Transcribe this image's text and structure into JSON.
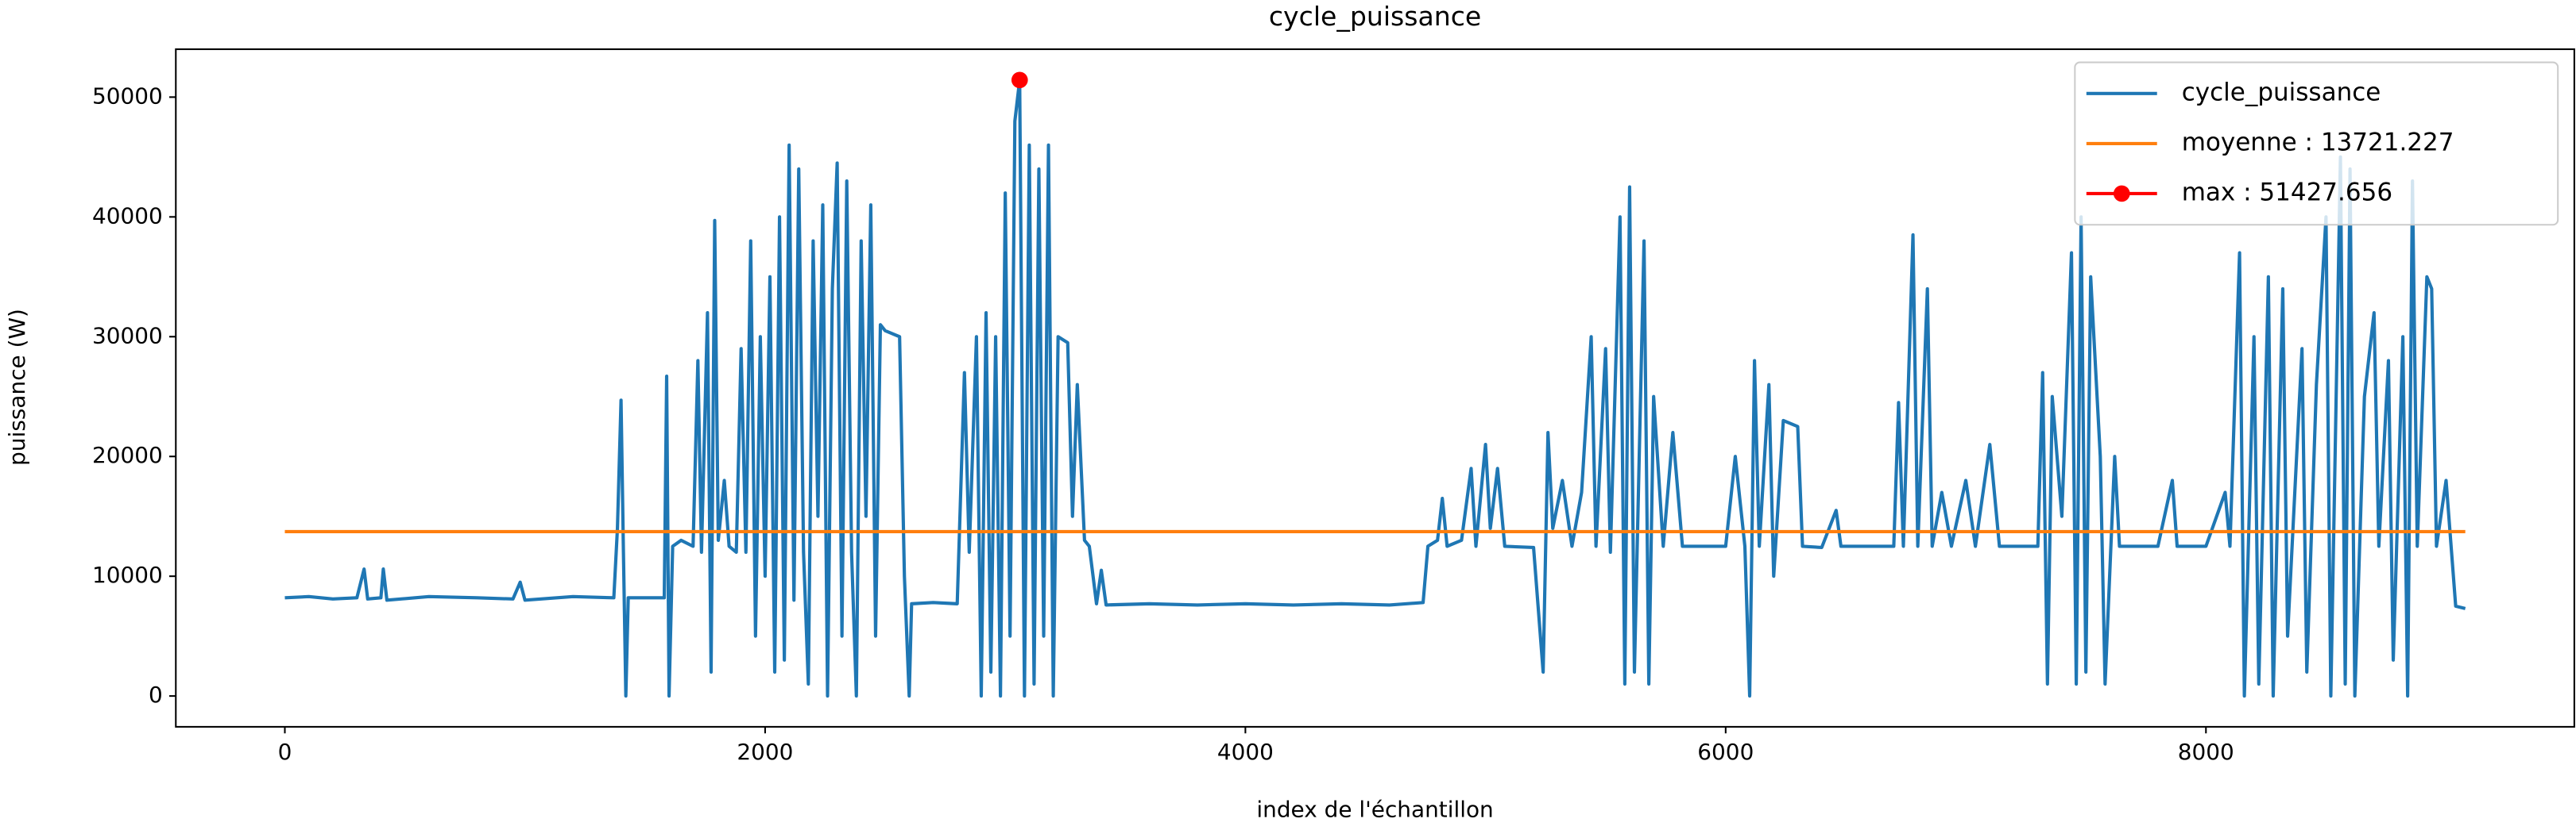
{
  "chart_data": {
    "type": "line",
    "title": "cycle_puissance",
    "x_label": "index de l'échantillon",
    "y_label": "puissance (W)",
    "xlim": [
      -454,
      9534
    ],
    "ylim": [
      -2571.4,
      53999.0
    ],
    "xticks": [
      0,
      2000,
      4000,
      6000,
      8000
    ],
    "yticks": [
      0,
      10000,
      20000,
      30000,
      40000,
      50000
    ],
    "grid": false,
    "legend": "upper right",
    "series": [
      {
        "name": "cycle_puissance",
        "color": "#1f77b4",
        "x": [
          0,
          100,
          200,
          300,
          330,
          345,
          400,
          410,
          425,
          600,
          800,
          950,
          980,
          1000,
          1200,
          1370,
          1385,
          1400,
          1410,
          1420,
          1430,
          1580,
          1590,
          1600,
          1615,
          1650,
          1700,
          1720,
          1735,
          1760,
          1775,
          1790,
          1805,
          1830,
          1850,
          1880,
          1900,
          1920,
          1940,
          1960,
          1980,
          2000,
          2020,
          2040,
          2060,
          2080,
          2100,
          2120,
          2140,
          2160,
          2180,
          2200,
          2220,
          2240,
          2260,
          2280,
          2300,
          2320,
          2340,
          2360,
          2380,
          2400,
          2420,
          2440,
          2460,
          2480,
          2500,
          2560,
          2580,
          2600,
          2610,
          2700,
          2800,
          2830,
          2850,
          2880,
          2900,
          2920,
          2940,
          2960,
          2980,
          3000,
          3020,
          3040,
          3060,
          3080,
          3100,
          3120,
          3140,
          3160,
          3180,
          3200,
          3220,
          3260,
          3280,
          3300,
          3330,
          3350,
          3380,
          3400,
          3420,
          3600,
          3800,
          4000,
          4200,
          4400,
          4600,
          4740,
          4760,
          4800,
          4820,
          4840,
          4900,
          4940,
          4960,
          5000,
          5020,
          5050,
          5080,
          5200,
          5240,
          5260,
          5280,
          5320,
          5360,
          5400,
          5440,
          5460,
          5500,
          5520,
          5560,
          5580,
          5600,
          5620,
          5660,
          5680,
          5700,
          5740,
          5780,
          5820,
          6000,
          6040,
          6080,
          6100,
          6120,
          6140,
          6180,
          6200,
          6240,
          6300,
          6320,
          6400,
          6460,
          6480,
          6700,
          6720,
          6740,
          6780,
          6800,
          6840,
          6860,
          6900,
          6940,
          7000,
          7040,
          7100,
          7140,
          7300,
          7320,
          7340,
          7360,
          7400,
          7440,
          7460,
          7480,
          7500,
          7520,
          7560,
          7580,
          7620,
          7640,
          7800,
          7860,
          7880,
          8000,
          8080,
          8100,
          8140,
          8160,
          8200,
          8220,
          8260,
          8280,
          8320,
          8340,
          8400,
          8420,
          8460,
          8500,
          8520,
          8560,
          8580,
          8600,
          8620,
          8660,
          8700,
          8720,
          8760,
          8780,
          8820,
          8840,
          8860,
          8880,
          8920,
          8940,
          8960,
          9000,
          9040,
          9080
        ],
        "values": [
          8200,
          8300,
          8100,
          8200,
          10600,
          8100,
          8200,
          10600,
          8000,
          8300,
          8200,
          8100,
          9500,
          8000,
          8300,
          8200,
          14000,
          24700,
          12000,
          0,
          8200,
          8200,
          26700,
          0,
          12500,
          13000,
          12500,
          28000,
          12000,
          32000,
          2000,
          39700,
          13000,
          18000,
          12500,
          12000,
          29000,
          12000,
          38000,
          5000,
          30000,
          10000,
          35000,
          2000,
          40000,
          3000,
          46000,
          8000,
          44000,
          12000,
          1000,
          38000,
          15000,
          41000,
          0,
          34000,
          44500,
          5000,
          43000,
          12000,
          0,
          38000,
          15000,
          41000,
          5000,
          31000,
          30500,
          30000,
          10000,
          0,
          7700,
          7800,
          7700,
          27000,
          12000,
          30000,
          0,
          32000,
          2000,
          30000,
          0,
          42000,
          5000,
          48000,
          51427.656,
          0,
          46000,
          1000,
          44000,
          5000,
          46000,
          0,
          30000,
          29500,
          15000,
          26000,
          13000,
          12500,
          7700,
          10500,
          7600,
          7700,
          7600,
          7700,
          7600,
          7700,
          7600,
          7800,
          12500,
          13000,
          16500,
          12500,
          13000,
          19000,
          12500,
          21000,
          14000,
          19000,
          12500,
          12400,
          2000,
          22000,
          14000,
          18000,
          12500,
          17000,
          30000,
          12500,
          29000,
          12000,
          40000,
          1000,
          42500,
          2000,
          38000,
          1000,
          25000,
          12500,
          22000,
          12500,
          12500,
          20000,
          12500,
          0,
          28000,
          12500,
          26000,
          10000,
          23000,
          22500,
          12500,
          12400,
          15500,
          12500,
          12500,
          24500,
          12500,
          38500,
          12500,
          34000,
          12500,
          17000,
          12500,
          18000,
          12500,
          21000,
          12500,
          12500,
          27000,
          1000,
          25000,
          15000,
          37000,
          1000,
          40000,
          2000,
          35000,
          20000,
          1000,
          20000,
          12500,
          12500,
          18000,
          12500,
          12500,
          17000,
          12500,
          37000,
          0,
          30000,
          1000,
          35000,
          0,
          34000,
          5000,
          29000,
          2000,
          26000,
          40000,
          0,
          45000,
          1000,
          44000,
          0,
          25000,
          32000,
          12500,
          28000,
          3000,
          30000,
          0,
          43000,
          12500,
          35000,
          34000,
          12500,
          18000,
          7500,
          7300
        ]
      },
      {
        "name": "moyenne : 13721.227",
        "color": "#ff7f0e",
        "x": [
          0,
          9080
        ],
        "values": [
          13721.227,
          13721.227
        ]
      },
      {
        "name": "max : 51427.656",
        "color": "#ff0000",
        "marker": true,
        "x": [
          3060
        ],
        "values": [
          51427.656
        ]
      }
    ]
  }
}
